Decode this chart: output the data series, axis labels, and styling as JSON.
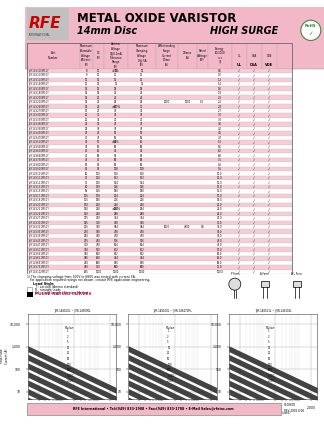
{
  "title_line1": "METAL OXIDE VARISTOR",
  "title_line2": "14mm Disc",
  "title_line3": "HIGH SURGE",
  "header_bg": "#f2b8c8",
  "pink_stripe": "#f5ccd8",
  "white": "#ffffff",
  "footer_text": "RFE International • Tel:(949) 833-1988 • Fax:(949) 833-1788 • E-Mail Sales@rfeinc.com",
  "doc_num": "C100809",
  "rev": "REV 2008.8.08",
  "chart1_title": "JVR-14S100L ~ JVR-14S090L",
  "chart2_title": "JVR-14S100L ~ JVR-14S471ML",
  "chart3_title": "JVR-14S511L ~ JVR-14S102L",
  "table_rows": [
    [
      "JVR14S100M51Y",
      "8",
      "10",
      "10",
      "±20%",
      "38",
      "",
      "",
      "",
      "0.6",
      true,
      true,
      true
    ],
    [
      "JVR14S110M51Y",
      "9",
      "11",
      "11",
      "",
      "45",
      "",
      "",
      "",
      "1.0",
      true,
      true,
      true
    ],
    [
      "JVR14S120M51Y",
      "10",
      "12",
      "12",
      "",
      "48",
      "",
      "",
      "",
      "1.2",
      true,
      true,
      true
    ],
    [
      "JVR14S140M51Y",
      "11",
      "14",
      "16",
      "",
      "56",
      "2000",
      "1000",
      "0.1",
      "1.4",
      true,
      true,
      true
    ],
    [
      "JVR14S160M51Y",
      "14",
      "16",
      "18",
      "",
      "65",
      "",
      "",
      "",
      "1.6",
      true,
      true,
      true
    ],
    [
      "JVR14S180M51Y",
      "14",
      "18",
      "22",
      "",
      "72",
      "",
      "",
      "",
      "1.8",
      true,
      true,
      true
    ],
    [
      "JVR14S200M51Y",
      "14",
      "20",
      "24",
      "",
      "80",
      "",
      "",
      "",
      "2.0",
      true,
      true,
      true
    ],
    [
      "JVR14S220M51Y",
      "14",
      "22",
      "26",
      "",
      "88",
      "",
      "",
      "",
      "2.2",
      true,
      true,
      true
    ],
    [
      "JVR14S240M51Y",
      "14",
      "24",
      "30",
      "",
      "96",
      "",
      "",
      "",
      "2.4",
      true,
      true,
      true
    ],
    [
      "JVR14S270M51Y",
      "17",
      "27",
      "32",
      "",
      "108",
      "",
      "",
      "",
      "2.7",
      true,
      true,
      true
    ],
    [
      "JVR14S300M51Y",
      "20",
      "30",
      "36",
      "",
      "120",
      "",
      "",
      "",
      "3.0",
      true,
      true,
      true
    ],
    [
      "JVR14S330M51Y",
      "20",
      "33",
      "40",
      "",
      "132",
      "",
      "",
      "",
      "3.3",
      true,
      true,
      true
    ],
    [
      "JVR14S360M51Y",
      "22",
      "36",
      "43",
      "",
      "144",
      "",
      "",
      "",
      "3.6",
      true,
      true,
      true
    ],
    [
      "JVR14S390M51Y",
      "25",
      "39",
      "47",
      "",
      "156",
      "",
      "",
      "",
      "4.0",
      true,
      true,
      true
    ],
    [
      "JVR14S430M51Y",
      "27",
      "43",
      "52",
      "",
      "172",
      "",
      "",
      "",
      "4.5",
      true,
      true,
      true
    ],
    [
      "JVR14S470M51Y",
      "30",
      "47",
      "56",
      "",
      "188",
      "",
      "",
      "",
      "4.7",
      true,
      true,
      true
    ],
    [
      "JVR14S510M51Y",
      "32",
      "51",
      "62",
      "±10%",
      "205",
      "",
      "",
      "",
      "5.1",
      true,
      true,
      true
    ],
    [
      "JVR14S560M51Y",
      "35",
      "56",
      "68",
      "",
      "224",
      "",
      "",
      "",
      "5.6",
      true,
      true,
      true
    ],
    [
      "JVR14S620M51Y",
      "40",
      "62",
      "74",
      "",
      "248",
      "",
      "",
      "",
      "6.2",
      true,
      true,
      true
    ],
    [
      "JVR14S680M51Y",
      "40",
      "68",
      "82",
      "",
      "272",
      "",
      "",
      "",
      "6.8",
      true,
      true,
      true
    ],
    [
      "JVR14S750M51Y",
      "45",
      "75",
      "90",
      "",
      "300",
      "",
      "",
      "",
      "7.5",
      true,
      true,
      true
    ],
    [
      "JVR14S820M51Y",
      "50",
      "82",
      "98",
      "",
      "328",
      "",
      "",
      "",
      "8.2",
      true,
      true,
      true
    ],
    [
      "JVR14S910M51Y",
      "55",
      "91",
      "108",
      "",
      "364",
      "",
      "",
      "",
      "9.1",
      true,
      true,
      true
    ],
    [
      "JVR14S101M51Y",
      "60",
      "100",
      "120",
      "",
      "400",
      "",
      "",
      "",
      "10.0",
      true,
      true,
      true
    ],
    [
      "JVR14S111M51Y",
      "70",
      "110",
      "132",
      "",
      "440",
      "",
      "",
      "",
      "11.0",
      true,
      true,
      true
    ],
    [
      "JVR14S121M51Y",
      "75",
      "120",
      "144",
      "",
      "480",
      "",
      "",
      "",
      "12.0",
      true,
      true,
      true
    ],
    [
      "JVR14S131M51Y",
      "80",
      "130",
      "156",
      "",
      "520",
      "6000",
      "4500",
      "0.6",
      "13.0",
      true,
      true,
      true
    ],
    [
      "JVR14S151M51Y",
      "95",
      "150",
      "180",
      "",
      "600",
      "",
      "",
      "",
      "15.0",
      true,
      true,
      true
    ],
    [
      "JVR14S171M51Y",
      "115",
      "170",
      "204",
      "",
      "680",
      "",
      "",
      "",
      "17.0",
      true,
      true,
      true
    ],
    [
      "JVR14S181M51Y",
      "115",
      "180",
      "216",
      "",
      "720",
      "",
      "",
      "",
      "18.0",
      true,
      true,
      true
    ],
    [
      "JVR14S201M51Y",
      "130",
      "200",
      "240",
      "",
      "800",
      "",
      "",
      "",
      "20.0",
      true,
      true,
      true
    ],
    [
      "JVR14S221M51Y",
      "140",
      "220",
      "264",
      "",
      "880",
      "",
      "",
      "",
      "22.0",
      true,
      true,
      true
    ],
    [
      "JVR14S241M51Y",
      "150",
      "240",
      "288",
      "",
      "960",
      "",
      "",
      "",
      "24.0",
      true,
      true,
      true
    ],
    [
      "JVR14S271M51Y",
      "175",
      "270",
      "324",
      "",
      "1060",
      "",
      "",
      "",
      "27.0",
      true,
      true,
      true
    ],
    [
      "JVR14S301M51Y",
      "195",
      "300",
      "360",
      "",
      "1200",
      "",
      "",
      "",
      "30.0",
      true,
      true,
      true
    ],
    [
      "JVR14S321M51Y",
      "205",
      "320",
      "384",
      "",
      "1280",
      "",
      "",
      "",
      "32.0",
      true,
      true,
      true
    ],
    [
      "JVR14S361M51Y",
      "230",
      "360",
      "430",
      "",
      "1440",
      "",
      "",
      "",
      "36.0",
      true,
      true,
      true
    ],
    [
      "JVR14S391M51Y",
      "250",
      "390",
      "470",
      "",
      "1560",
      "",
      "",
      "",
      "39.0",
      true,
      true,
      true
    ],
    [
      "JVR14S431M51Y",
      "275",
      "430",
      "516",
      "",
      "1720",
      "",
      "",
      "",
      "43.0",
      true,
      true,
      true
    ],
    [
      "JVR14S471M51Y",
      "300",
      "470",
      "564",
      "",
      "1880",
      "",
      "",
      "",
      "47.0",
      true,
      true,
      true
    ],
    [
      "JVR14S511M51Y",
      "320",
      "510",
      "612",
      "",
      "2050",
      "",
      "",
      "",
      "51.0",
      true,
      true,
      true
    ],
    [
      "JVR14S561M51Y",
      "350",
      "560",
      "672",
      "",
      "2240",
      "",
      "",
      "",
      "56.0",
      true,
      true,
      true
    ],
    [
      "JVR14S621M51Y",
      "385",
      "620",
      "744",
      "",
      "2480",
      "",
      "",
      "",
      "62.0",
      true,
      true,
      true
    ],
    [
      "JVR14S681M51Y",
      "420",
      "680",
      "820",
      "",
      "2720",
      "",
      "",
      "",
      "68.0",
      true,
      true,
      true
    ],
    [
      "JVR14S751M51Y",
      "460",
      "750",
      "900",
      "",
      "3000",
      "",
      "",
      "",
      "75.0",
      true,
      true,
      true
    ],
    [
      "JVR14S102M51Y",
      "625",
      "1000",
      "1200",
      "",
      "4000",
      "",
      "",
      "",
      "100.0",
      true,
      true,
      true
    ]
  ]
}
